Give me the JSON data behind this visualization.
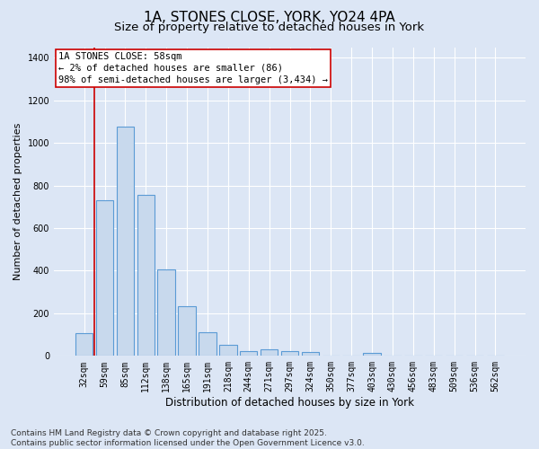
{
  "title_line1": "1A, STONES CLOSE, YORK, YO24 4PA",
  "title_line2": "Size of property relative to detached houses in York",
  "xlabel": "Distribution of detached houses by size in York",
  "ylabel": "Number of detached properties",
  "categories": [
    "32sqm",
    "59sqm",
    "85sqm",
    "112sqm",
    "138sqm",
    "165sqm",
    "191sqm",
    "218sqm",
    "244sqm",
    "271sqm",
    "297sqm",
    "324sqm",
    "350sqm",
    "377sqm",
    "403sqm",
    "430sqm",
    "456sqm",
    "483sqm",
    "509sqm",
    "536sqm",
    "562sqm"
  ],
  "values": [
    105,
    730,
    1075,
    755,
    405,
    235,
    110,
    52,
    22,
    30,
    22,
    18,
    0,
    0,
    12,
    0,
    0,
    0,
    0,
    0,
    0
  ],
  "bar_color": "#c8d9ed",
  "bar_edge_color": "#5b9bd5",
  "background_color": "#dce6f5",
  "vline_color": "#cc0000",
  "vline_x_index": 1,
  "annotation_line1": "1A STONES CLOSE: 58sqm",
  "annotation_line2": "← 2% of detached houses are smaller (86)",
  "annotation_line3": "98% of semi-detached houses are larger (3,434) →",
  "annotation_box_color": "#cc0000",
  "ylim": [
    0,
    1450
  ],
  "yticks": [
    0,
    200,
    400,
    600,
    800,
    1000,
    1200,
    1400
  ],
  "footer_line1": "Contains HM Land Registry data © Crown copyright and database right 2025.",
  "footer_line2": "Contains public sector information licensed under the Open Government Licence v3.0.",
  "grid_color": "#ffffff",
  "title_fontsize": 11,
  "subtitle_fontsize": 9.5,
  "ylabel_fontsize": 8,
  "xlabel_fontsize": 8.5,
  "tick_fontsize": 7,
  "annotation_fontsize": 7.5,
  "footer_fontsize": 6.5
}
